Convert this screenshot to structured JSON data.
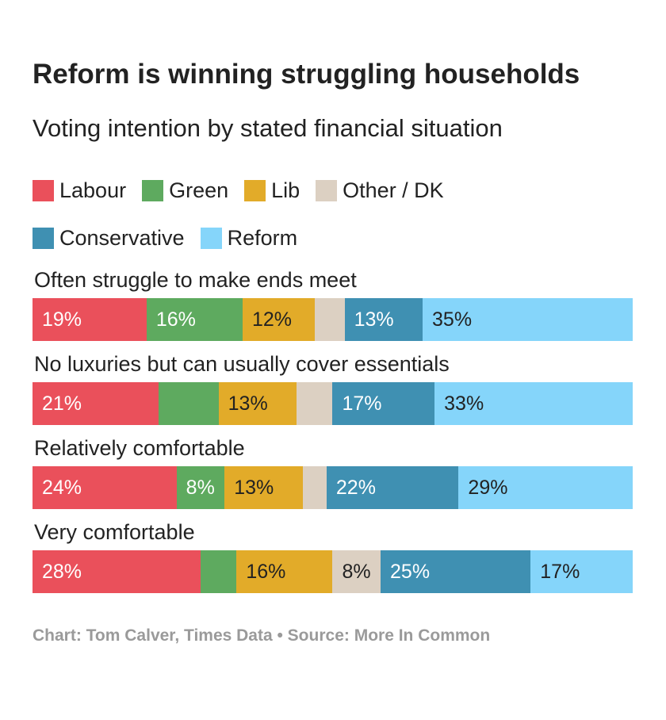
{
  "title": "Reform is winning struggling households",
  "subtitle": "Voting intention by stated financial situation",
  "footer": "Chart: Tom Calver, Times Data • Source: More In Common",
  "chart_data": {
    "type": "bar",
    "orientation": "horizontal",
    "stacked": true,
    "value_unit": "%",
    "legend_position": "top",
    "categories": [
      "Often struggle to make ends meet",
      "No luxuries but can usually cover essentials",
      "Relatively comfortable",
      "Very comfortable"
    ],
    "series": [
      {
        "name": "Labour",
        "color": "#EA505B",
        "text_color": "#ffffff",
        "values": [
          19,
          21,
          24,
          28
        ],
        "labels": [
          "19%",
          "21%",
          "24%",
          "28%"
        ]
      },
      {
        "name": "Green",
        "color": "#5EAA5F",
        "text_color": "#ffffff",
        "values": [
          16,
          10,
          8,
          6
        ],
        "labels": [
          "16%",
          "",
          "8%",
          ""
        ]
      },
      {
        "name": "Lib",
        "color": "#E2AB29",
        "text_color": "#222222",
        "values": [
          12,
          13,
          13,
          16
        ],
        "labels": [
          "12%",
          "13%",
          "13%",
          "16%"
        ]
      },
      {
        "name": "Other / DK",
        "color": "#DCD0C2",
        "text_color": "#222222",
        "values": [
          5,
          6,
          4,
          8
        ],
        "labels": [
          "",
          "",
          "",
          "8%"
        ]
      },
      {
        "name": "Conservative",
        "color": "#3F90B2",
        "text_color": "#ffffff",
        "values": [
          13,
          17,
          22,
          25
        ],
        "labels": [
          "13%",
          "17%",
          "22%",
          "25%"
        ]
      },
      {
        "name": "Reform",
        "color": "#85D5FA",
        "text_color": "#222222",
        "values": [
          35,
          33,
          29,
          17
        ],
        "labels": [
          "35%",
          "33%",
          "29%",
          "17%"
        ]
      }
    ]
  }
}
